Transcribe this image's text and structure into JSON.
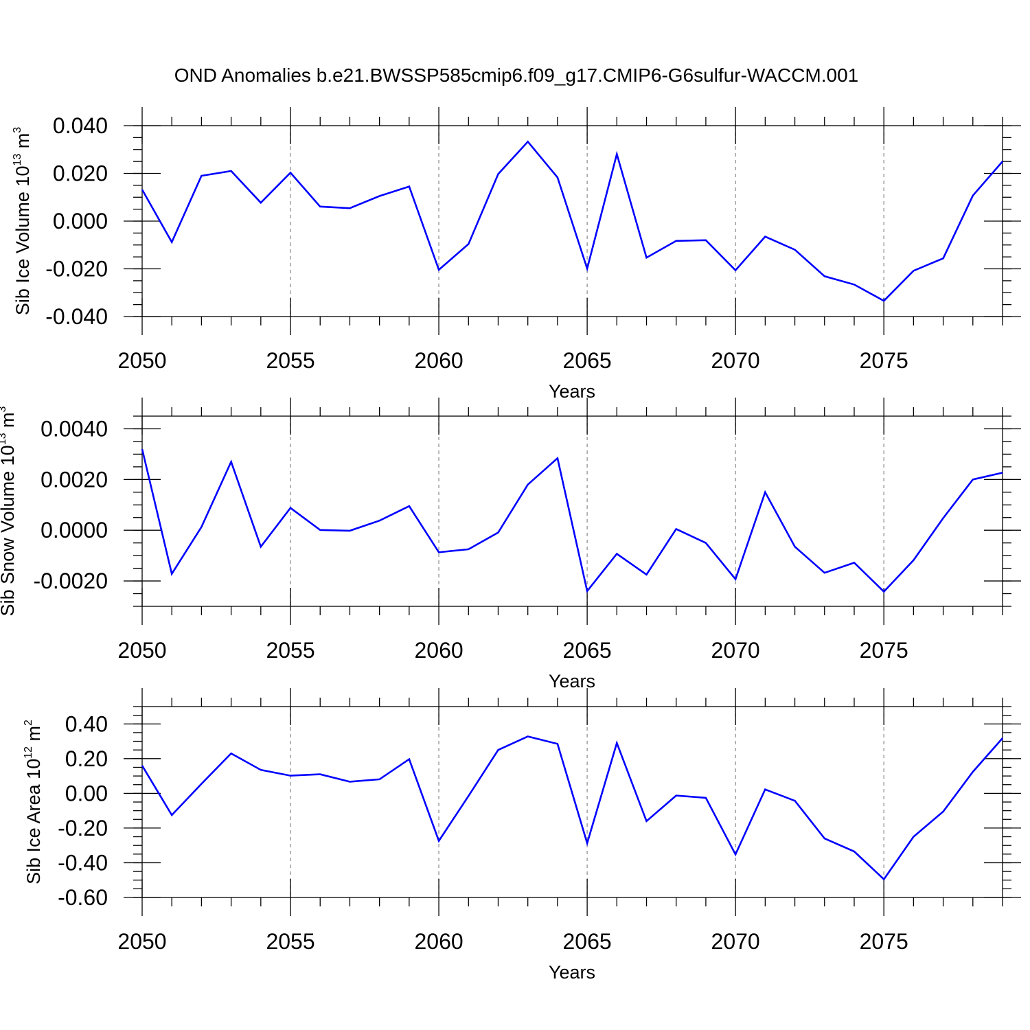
{
  "title": "OND Anomalies b.e21.BWSSP585cmip6.f09_g17.CMIP6-G6sulfur-WACCM.001",
  "chart_data": [
    {
      "type": "line",
      "ylabel": {
        "text": "Sib Ice Volume 10",
        "exp": "13",
        "unit": " m",
        "unit_exp": "3"
      },
      "xlabel": "Years",
      "xlim": [
        2050,
        2079
      ],
      "ylim": [
        -0.04,
        0.04
      ],
      "x_major_ticks": [
        2050,
        2055,
        2060,
        2065,
        2070,
        2075
      ],
      "x_tick_labels": [
        "2050",
        "2055",
        "2060",
        "2065",
        "2070",
        "2075"
      ],
      "y_ticks": [
        0.04,
        0.02,
        0.0,
        -0.02,
        -0.04
      ],
      "y_tick_labels": [
        "0.040",
        "0.020",
        "0.000",
        "-0.020",
        "-0.040"
      ],
      "y_minor_step": 0.005,
      "series": [
        {
          "color": "#0000ff",
          "x": [
            2050,
            2051,
            2052,
            2053,
            2054,
            2055,
            2056,
            2057,
            2058,
            2059,
            2060,
            2061,
            2062,
            2063,
            2064,
            2065,
            2066,
            2067,
            2068,
            2069,
            2070,
            2071,
            2072,
            2073,
            2074,
            2075,
            2076,
            2077,
            2078,
            2079
          ],
          "values": [
            0.0132,
            -0.0088,
            0.019,
            0.021,
            0.0077,
            0.0203,
            0.0061,
            0.0054,
            0.0105,
            0.0145,
            -0.0204,
            -0.0096,
            0.0197,
            0.0333,
            0.0183,
            -0.0199,
            0.0281,
            -0.0153,
            -0.0083,
            -0.008,
            -0.0206,
            -0.0065,
            -0.012,
            -0.0231,
            -0.0266,
            -0.0334,
            -0.0208,
            -0.0156,
            0.0107,
            0.025
          ]
        }
      ]
    },
    {
      "type": "line",
      "ylabel": {
        "text": "Sib Snow Volume 10",
        "exp": "13",
        "unit": " m",
        "unit_exp": "3"
      },
      "xlabel": "Years",
      "xlim": [
        2050,
        2079
      ],
      "ylim": [
        -0.003,
        0.0045
      ],
      "x_major_ticks": [
        2050,
        2055,
        2060,
        2065,
        2070,
        2075
      ],
      "x_tick_labels": [
        "2050",
        "2055",
        "2060",
        "2065",
        "2070",
        "2075"
      ],
      "y_ticks": [
        0.004,
        0.002,
        0.0,
        -0.002
      ],
      "y_tick_labels": [
        "0.0040",
        "0.0020",
        "0.0000",
        "-0.0020"
      ],
      "y_minor_step": 0.0005,
      "series": [
        {
          "color": "#0000ff",
          "x": [
            2050,
            2051,
            2052,
            2053,
            2054,
            2055,
            2056,
            2057,
            2058,
            2059,
            2060,
            2061,
            2062,
            2063,
            2064,
            2065,
            2066,
            2067,
            2068,
            2069,
            2070,
            2071,
            2072,
            2073,
            2074,
            2075,
            2076,
            2077,
            2078,
            2079
          ],
          "values": [
            0.0032,
            -0.00172,
            0.00013,
            0.0027,
            -0.00065,
            0.00088,
            1e-05,
            -2e-05,
            0.00038,
            0.00095,
            -0.00087,
            -0.00075,
            -9e-05,
            0.0018,
            0.00284,
            -0.0024,
            -0.00093,
            -0.00175,
            5e-05,
            -0.0005,
            -0.00193,
            0.0015,
            -0.00065,
            -0.00168,
            -0.00128,
            -0.00242,
            -0.00118,
            0.00048,
            0.002,
            0.00227
          ]
        }
      ]
    },
    {
      "type": "line",
      "ylabel": {
        "text": "Sib Ice Area 10",
        "exp": "12",
        "unit": " m",
        "unit_exp": "2"
      },
      "xlabel": "Years",
      "xlim": [
        2050,
        2079
      ],
      "ylim": [
        -0.6,
        0.5
      ],
      "x_major_ticks": [
        2050,
        2055,
        2060,
        2065,
        2070,
        2075
      ],
      "x_tick_labels": [
        "2050",
        "2055",
        "2060",
        "2065",
        "2070",
        "2075"
      ],
      "y_ticks": [
        0.4,
        0.2,
        0.0,
        -0.2,
        -0.4,
        -0.6
      ],
      "y_tick_labels": [
        "0.40",
        "0.20",
        "0.00",
        "-0.20",
        "-0.40",
        "-0.60"
      ],
      "y_minor_step": 0.05,
      "series": [
        {
          "color": "#0000ff",
          "x": [
            2050,
            2051,
            2052,
            2053,
            2054,
            2055,
            2056,
            2057,
            2058,
            2059,
            2060,
            2061,
            2062,
            2063,
            2064,
            2065,
            2066,
            2067,
            2068,
            2069,
            2070,
            2071,
            2072,
            2073,
            2074,
            2075,
            2076,
            2077,
            2078,
            2079
          ],
          "values": [
            0.16,
            -0.125,
            0.055,
            0.23,
            0.135,
            0.102,
            0.11,
            0.067,
            0.081,
            0.197,
            -0.274,
            -0.015,
            0.25,
            0.328,
            0.285,
            -0.287,
            0.29,
            -0.16,
            -0.013,
            -0.026,
            -0.352,
            0.023,
            -0.043,
            -0.26,
            -0.335,
            -0.495,
            -0.25,
            -0.105,
            0.124,
            0.318
          ]
        }
      ]
    }
  ]
}
